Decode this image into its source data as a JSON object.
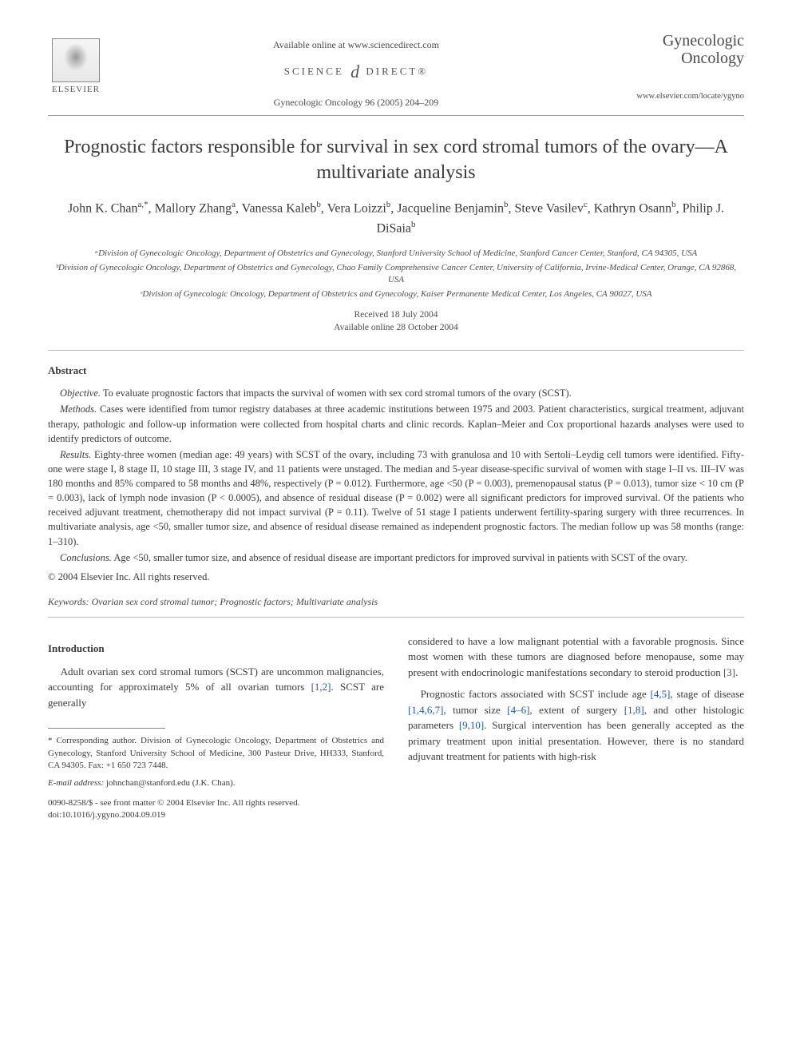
{
  "header": {
    "available_online": "Available online at www.sciencedirect.com",
    "scidirect_left": "SCIENCE",
    "scidirect_d": "d",
    "scidirect_right": "DIRECT®",
    "journal_ref": "Gynecologic Oncology 96 (2005) 204–209",
    "elsevier_label": "ELSEVIER",
    "journal_name_1": "Gynecologic",
    "journal_name_2": "Oncology",
    "journal_url": "www.elsevier.com/locate/ygyno"
  },
  "title": "Prognostic factors responsible for survival in sex cord stromal tumors of the ovary—A multivariate analysis",
  "authors_html": "John K. Chan<sup>a,*</sup>, Mallory Zhang<sup>a</sup>, Vanessa Kaleb<sup>b</sup>, Vera Loizzi<sup>b</sup>, Jacqueline Benjamin<sup>b</sup>, Steve Vasilev<sup>c</sup>, Kathryn Osann<sup>b</sup>, Philip J. DiSaia<sup>b</sup>",
  "affiliations": {
    "a": "ᵃDivision of Gynecologic Oncology, Department of Obstetrics and Gynecology, Stanford University School of Medicine, Stanford Cancer Center, Stanford, CA 94305, USA",
    "b": "ᵇDivision of Gynecologic Oncology, Department of Obstetrics and Gynecology, Chao Family Comprehensive Cancer Center, University of California, Irvine-Medical Center, Orange, CA 92868, USA",
    "c": "ᶜDivision of Gynecologic Oncology, Department of Obstetrics and Gynecology, Kaiser Permanente Medical Center, Los Angeles, CA 90027, USA"
  },
  "dates": {
    "received": "Received 18 July 2004",
    "online": "Available online 28 October 2004"
  },
  "abstract": {
    "heading": "Abstract",
    "objective_lead": "Objective.",
    "objective": " To evaluate prognostic factors that impacts the survival of women with sex cord stromal tumors of the ovary (SCST).",
    "methods_lead": "Methods.",
    "methods": " Cases were identified from tumor registry databases at three academic institutions between 1975 and 2003. Patient characteristics, surgical treatment, adjuvant therapy, pathologic and follow-up information were collected from hospital charts and clinic records. Kaplan–Meier and Cox proportional hazards analyses were used to identify predictors of outcome.",
    "results_lead": "Results.",
    "results": " Eighty-three women (median age: 49 years) with SCST of the ovary, including 73 with granulosa and 10 with Sertoli–Leydig cell tumors were identified. Fifty-one were stage I, 8 stage II, 10 stage III, 3 stage IV, and 11 patients were unstaged. The median and 5-year disease-specific survival of women with stage I–II vs. III–IV was 180 months and 85% compared to 58 months and 48%, respectively (P = 0.012). Furthermore, age <50 (P = 0.003), premenopausal status (P = 0.013), tumor size < 10 cm (P = 0.003), lack of lymph node invasion (P < 0.0005), and absence of residual disease (P = 0.002) were all significant predictors for improved survival. Of the patients who received adjuvant treatment, chemotherapy did not impact survival (P = 0.11). Twelve of 51 stage I patients underwent fertility-sparing surgery with three recurrences. In multivariate analysis, age <50, smaller tumor size, and absence of residual disease remained as independent prognostic factors. The median follow up was 58 months (range: 1–310).",
    "conclusions_lead": "Conclusions.",
    "conclusions": " Age <50, smaller tumor size, and absence of residual disease are important predictors for improved survival in patients with SCST of the ovary.",
    "copyright": "© 2004 Elsevier Inc. All rights reserved."
  },
  "keywords": {
    "label": "Keywords:",
    "text": " Ovarian sex cord stromal tumor; Prognostic factors; Multivariate analysis"
  },
  "intro": {
    "heading": "Introduction",
    "p1_pre": "Adult ovarian sex cord stromal tumors (SCST) are uncommon malignancies, accounting for approximately 5% of all ovarian tumors ",
    "p1_ref1": "[1,2]",
    "p1_post": ". SCST are generally",
    "p2_pre": "considered to have a low malignant potential with a favorable prognosis. Since most women with these tumors are diagnosed before menopause, some may present with endocrinologic manifestations secondary to steroid production ",
    "p2_ref1": "[3]",
    "p2_post": ".",
    "p3_a": "Prognostic factors associated with SCST include age ",
    "p3_ref_a": "[4,5]",
    "p3_b": ", stage of disease ",
    "p3_ref_b": "[1,4,6,7]",
    "p3_c": ", tumor size ",
    "p3_ref_c": "[4–6]",
    "p3_d": ", extent of surgery ",
    "p3_ref_d": "[1,8]",
    "p3_e": ", and other histologic parameters ",
    "p3_ref_e": "[9,10]",
    "p3_f": ". Surgical intervention has been generally accepted as the primary treatment upon initial presentation. However, there is no standard adjuvant treatment for patients with high-risk"
  },
  "footnotes": {
    "corresponding": "* Corresponding author. Division of Gynecologic Oncology, Department of Obstetrics and Gynecology, Stanford University School of Medicine, 300 Pasteur Drive, HH333, Stanford, CA 94305. Fax: +1 650 723 7448.",
    "email_label": "E-mail address:",
    "email": " johnchan@stanford.edu (J.K. Chan).",
    "front_matter": "0090-8258/$ - see front matter © 2004 Elsevier Inc. All rights reserved.",
    "doi": "doi:10.1016/j.ygyno.2004.09.019"
  },
  "colors": {
    "text": "#3a3a3a",
    "link": "#2256b0",
    "rule": "#999999",
    "background": "#ffffff"
  }
}
